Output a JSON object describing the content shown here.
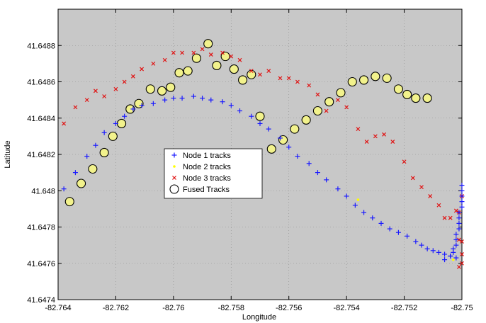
{
  "chart_data": {
    "type": "scatter",
    "xlabel": "Longitude",
    "ylabel": "Latitude",
    "xlim": [
      -82.764,
      -82.75
    ],
    "ylim": [
      41.6474,
      41.649
    ],
    "xticks": [
      -82.764,
      -82.762,
      -82.76,
      -82.758,
      -82.756,
      -82.754,
      -82.752,
      -82.75
    ],
    "yticks": [
      41.6474,
      41.6476,
      41.6478,
      41.648,
      41.6482,
      41.6484,
      41.6486,
      41.6488
    ],
    "xtick_labels": [
      "-82.764",
      "-82.762",
      "-82.76",
      "-82.758",
      "-82.756",
      "-82.754",
      "-82.752",
      "-82.75"
    ],
    "ytick_labels": [
      "41.6474",
      "41.6476",
      "41.6478",
      "41.648",
      "41.6482",
      "41.6484",
      "41.6486",
      "41.6488"
    ],
    "grid": true,
    "background_color": "#c8c8c8",
    "legend_position": "center-left",
    "series": [
      {
        "name": "Node 1 tracks",
        "marker": "plus",
        "color": "#1a1aff",
        "points": [
          [
            -82.7638,
            41.64801
          ],
          [
            -82.7634,
            41.6481
          ],
          [
            -82.763,
            41.64819
          ],
          [
            -82.7627,
            41.64825
          ],
          [
            -82.7624,
            41.64832
          ],
          [
            -82.762,
            41.64837
          ],
          [
            -82.7617,
            41.64841
          ],
          [
            -82.7614,
            41.64845
          ],
          [
            -82.7611,
            41.64847
          ],
          [
            -82.7607,
            41.64848
          ],
          [
            -82.7603,
            41.6485
          ],
          [
            -82.76,
            41.64851
          ],
          [
            -82.7597,
            41.64851
          ],
          [
            -82.7593,
            41.64852
          ],
          [
            -82.759,
            41.64851
          ],
          [
            -82.7587,
            41.6485
          ],
          [
            -82.7583,
            41.64849
          ],
          [
            -82.758,
            41.64847
          ],
          [
            -82.7577,
            41.64844
          ],
          [
            -82.7573,
            41.64841
          ],
          [
            -82.757,
            41.64837
          ],
          [
            -82.7567,
            41.64834
          ],
          [
            -82.7563,
            41.64829
          ],
          [
            -82.756,
            41.64824
          ],
          [
            -82.7557,
            41.64819
          ],
          [
            -82.7553,
            41.64815
          ],
          [
            -82.755,
            41.6481
          ],
          [
            -82.7547,
            41.64806
          ],
          [
            -82.7543,
            41.64801
          ],
          [
            -82.754,
            41.64797
          ],
          [
            -82.7537,
            41.64792
          ],
          [
            -82.7534,
            41.64788
          ],
          [
            -82.7531,
            41.64785
          ],
          [
            -82.7528,
            41.64782
          ],
          [
            -82.7525,
            41.64779
          ],
          [
            -82.7522,
            41.64777
          ],
          [
            -82.7519,
            41.64775
          ],
          [
            -82.7516,
            41.64772
          ],
          [
            -82.7514,
            41.6477
          ],
          [
            -82.7512,
            41.64768
          ],
          [
            -82.751,
            41.64767
          ],
          [
            -82.7508,
            41.64766
          ],
          [
            -82.7506,
            41.64765
          ],
          [
            -82.7504,
            41.64764
          ],
          [
            -82.7502,
            41.64763
          ],
          [
            -82.7506,
            41.64762
          ],
          [
            -82.7504,
            41.64764
          ],
          [
            -82.7503,
            41.64766
          ],
          [
            -82.7503,
            41.64768
          ],
          [
            -82.7502,
            41.6477
          ],
          [
            -82.7502,
            41.64773
          ],
          [
            -82.7502,
            41.64776
          ],
          [
            -82.7501,
            41.64779
          ],
          [
            -82.7501,
            41.64782
          ],
          [
            -82.7501,
            41.64785
          ],
          [
            -82.7501,
            41.64788
          ],
          [
            -82.75,
            41.64791
          ],
          [
            -82.75,
            41.64794
          ],
          [
            -82.75,
            41.64797
          ],
          [
            -82.75,
            41.648
          ],
          [
            -82.75,
            41.64803
          ]
        ]
      },
      {
        "name": "Node 2 tracks",
        "marker": "point",
        "color": "#ffff00",
        "points": [
          [
            -82.7536,
            41.64795
          ],
          [
            -82.7503,
            41.64762
          ]
        ]
      },
      {
        "name": "Node 3 tracks",
        "marker": "x",
        "color": "#e01010",
        "points": [
          [
            -82.7638,
            41.64837
          ],
          [
            -82.7634,
            41.64846
          ],
          [
            -82.763,
            41.6485
          ],
          [
            -82.7627,
            41.64855
          ],
          [
            -82.7624,
            41.64852
          ],
          [
            -82.762,
            41.64856
          ],
          [
            -82.7617,
            41.6486
          ],
          [
            -82.7614,
            41.64863
          ],
          [
            -82.7611,
            41.64867
          ],
          [
            -82.7607,
            41.6487
          ],
          [
            -82.7603,
            41.64872
          ],
          [
            -82.76,
            41.64876
          ],
          [
            -82.7597,
            41.64876
          ],
          [
            -82.7593,
            41.64876
          ],
          [
            -82.759,
            41.64878
          ],
          [
            -82.7587,
            41.64875
          ],
          [
            -82.7583,
            41.64876
          ],
          [
            -82.758,
            41.64874
          ],
          [
            -82.7577,
            41.64872
          ],
          [
            -82.7573,
            41.64866
          ],
          [
            -82.757,
            41.64864
          ],
          [
            -82.7567,
            41.64866
          ],
          [
            -82.7563,
            41.64862
          ],
          [
            -82.756,
            41.64862
          ],
          [
            -82.7557,
            41.6486
          ],
          [
            -82.7553,
            41.64858
          ],
          [
            -82.755,
            41.64853
          ],
          [
            -82.7547,
            41.64844
          ],
          [
            -82.7543,
            41.6485
          ],
          [
            -82.754,
            41.64846
          ],
          [
            -82.7536,
            41.64834
          ],
          [
            -82.7533,
            41.64827
          ],
          [
            -82.753,
            41.6483
          ],
          [
            -82.7527,
            41.64831
          ],
          [
            -82.7524,
            41.64827
          ],
          [
            -82.752,
            41.64816
          ],
          [
            -82.7517,
            41.64807
          ],
          [
            -82.7514,
            41.64802
          ],
          [
            -82.7511,
            41.64797
          ],
          [
            -82.7508,
            41.64792
          ],
          [
            -82.7506,
            41.64785
          ],
          [
            -82.7504,
            41.64785
          ],
          [
            -82.7502,
            41.64789
          ],
          [
            -82.7501,
            41.64788
          ],
          [
            -82.75,
            41.64797
          ],
          [
            -82.7501,
            41.64773
          ],
          [
            -82.75,
            41.64772
          ],
          [
            -82.75,
            41.64765
          ],
          [
            -82.75,
            41.6476
          ],
          [
            -82.7501,
            41.64758
          ]
        ]
      },
      {
        "name": "Fused Tracks",
        "marker": "circle",
        "color": "#000000",
        "face_color": "#f2f28c",
        "points": [
          [
            -82.7636,
            41.64794
          ],
          [
            -82.7632,
            41.64804
          ],
          [
            -82.7628,
            41.64812
          ],
          [
            -82.7624,
            41.64821
          ],
          [
            -82.7621,
            41.6483
          ],
          [
            -82.7618,
            41.64837
          ],
          [
            -82.7615,
            41.64845
          ],
          [
            -82.7612,
            41.64848
          ],
          [
            -82.7608,
            41.64856
          ],
          [
            -82.7604,
            41.64855
          ],
          [
            -82.7601,
            41.64857
          ],
          [
            -82.7598,
            41.64865
          ],
          [
            -82.7595,
            41.64866
          ],
          [
            -82.7592,
            41.64873
          ],
          [
            -82.7588,
            41.64881
          ],
          [
            -82.7585,
            41.64869
          ],
          [
            -82.7582,
            41.64874
          ],
          [
            -82.7579,
            41.64867
          ],
          [
            -82.7576,
            41.64861
          ],
          [
            -82.7573,
            41.64864
          ],
          [
            -82.757,
            41.64841
          ],
          [
            -82.7566,
            41.64823
          ],
          [
            -82.7562,
            41.64828
          ],
          [
            -82.7558,
            41.64834
          ],
          [
            -82.7554,
            41.64839
          ],
          [
            -82.755,
            41.64844
          ],
          [
            -82.7546,
            41.64849
          ],
          [
            -82.7542,
            41.64854
          ],
          [
            -82.7538,
            41.6486
          ],
          [
            -82.7534,
            41.64861
          ],
          [
            -82.753,
            41.64863
          ],
          [
            -82.7526,
            41.64862
          ],
          [
            -82.7522,
            41.64856
          ],
          [
            -82.7519,
            41.64853
          ],
          [
            -82.7516,
            41.64851
          ],
          [
            -82.7512,
            41.64851
          ]
        ]
      }
    ]
  }
}
